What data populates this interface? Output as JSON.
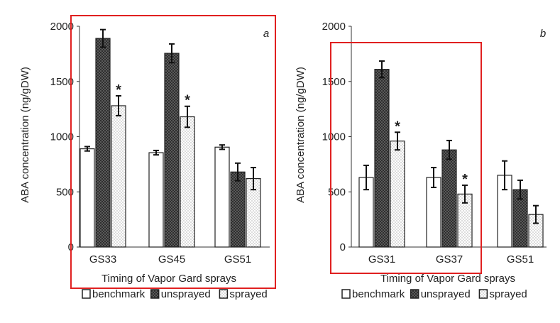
{
  "colors": {
    "highlight_box": "#e02020",
    "bar_stroke": "#222222",
    "benchmark_fill": "#ffffff",
    "unsprayed_fill": "#6b6b6b",
    "sprayed_fill": "#ffffff"
  },
  "chart_data": [
    {
      "type": "bar",
      "panel_label": "a",
      "title": "",
      "xlabel": "Timing of Vapor Gard sprays",
      "ylabel": "ABA concentration (ng/gDW)",
      "ylim": [
        0,
        2000
      ],
      "yticks": [
        "0",
        "500",
        "1000",
        "1500",
        "2000"
      ],
      "categories": [
        "GS33",
        "GS45",
        "GS51"
      ],
      "series": [
        {
          "name": "benchmark",
          "values": [
            890,
            855,
            905
          ],
          "errors": [
            20,
            20,
            20
          ]
        },
        {
          "name": "unsprayed",
          "values": [
            1890,
            1755,
            680
          ],
          "errors": [
            80,
            85,
            80
          ]
        },
        {
          "name": "sprayed",
          "values": [
            1280,
            1180,
            620
          ],
          "errors": [
            90,
            95,
            100
          ]
        }
      ],
      "significance_marks": [
        {
          "category": "GS33",
          "series": "sprayed",
          "mark": "*"
        },
        {
          "category": "GS45",
          "series": "sprayed",
          "mark": "*"
        }
      ],
      "legend": [
        "benchmark",
        "unsprayed",
        "sprayed"
      ],
      "legend_position": "bottom",
      "highlighted_categories": [
        "GS33",
        "GS45"
      ]
    },
    {
      "type": "bar",
      "panel_label": "b",
      "title": "",
      "xlabel": "Timing of Vapor Gard sprays",
      "ylabel": "ABA concentration (ng/gDW)",
      "ylim": [
        0,
        2000
      ],
      "yticks": [
        "0",
        "500",
        "1000",
        "1500",
        "2000"
      ],
      "categories": [
        "GS31",
        "GS37",
        "GS51"
      ],
      "series": [
        {
          "name": "benchmark",
          "values": [
            630,
            630,
            650
          ],
          "errors": [
            110,
            90,
            130
          ]
        },
        {
          "name": "unsprayed",
          "values": [
            1610,
            880,
            520
          ],
          "errors": [
            75,
            85,
            85
          ]
        },
        {
          "name": "sprayed",
          "values": [
            960,
            480,
            295
          ],
          "errors": [
            80,
            80,
            80
          ]
        }
      ],
      "significance_marks": [
        {
          "category": "GS31",
          "series": "sprayed",
          "mark": "*"
        },
        {
          "category": "GS37",
          "series": "sprayed",
          "mark": "*"
        }
      ],
      "legend": [
        "benchmark",
        "unsprayed",
        "sprayed"
      ],
      "legend_position": "bottom",
      "highlighted_categories": [
        "GS31",
        "GS37"
      ]
    }
  ]
}
